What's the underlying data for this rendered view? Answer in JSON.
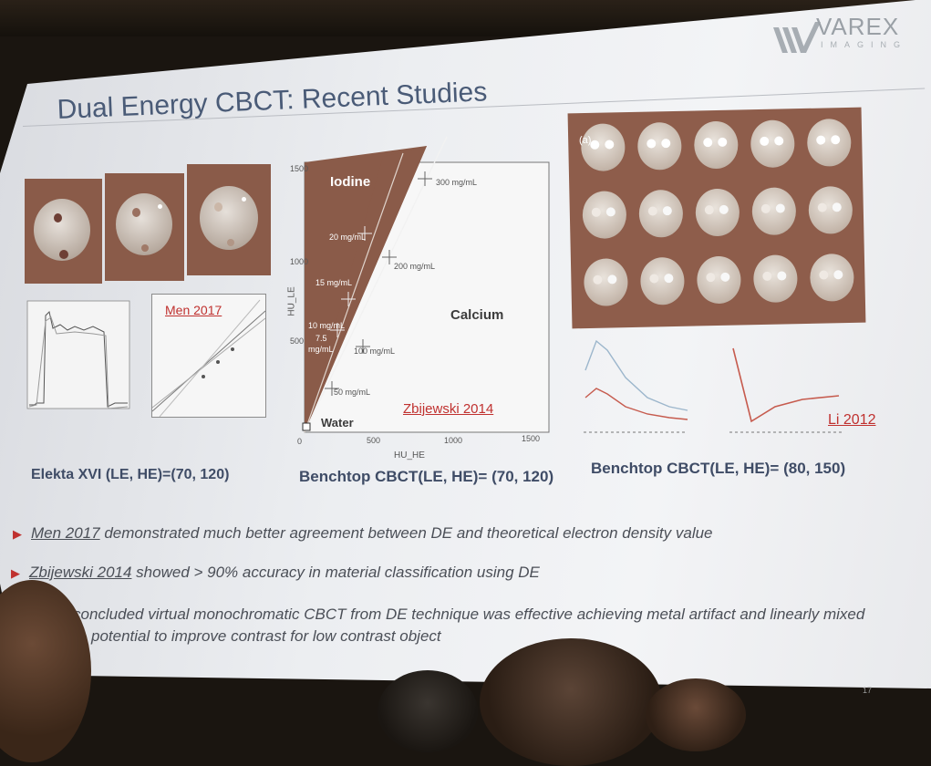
{
  "logo": {
    "name": "VAREX",
    "sub": "IMAGING"
  },
  "slide": {
    "title": "Dual Energy CBCT: Recent Studies",
    "page_number": "17"
  },
  "left_panel": {
    "plot_ref": "Men 2017",
    "caption": "Elekta XVI (LE, HE)=(70, 120)"
  },
  "middle_panel": {
    "labels": {
      "iodine": "Iodine",
      "calcium": "Calcium",
      "water": "Water",
      "c300": "300 mg/mL",
      "c200": "200 mg/mL",
      "c100": "100 mg/mL",
      "c50": "50 mg/mL",
      "i20": "20 mg/mL",
      "i15": "15 mg/mL",
      "i10": "10 mg/mL",
      "i75": "7.5",
      "i75b": "mg/mL"
    },
    "y_ticks": [
      "1500",
      "1000",
      "500"
    ],
    "x_ticks": [
      "0",
      "500",
      "1000",
      "1500"
    ],
    "ylabel": "HU_LE",
    "xlabel": "HU_HE",
    "ref": "Zbijewski 2014",
    "caption": "Benchtop CBCT(LE, HE)= (70, 120)"
  },
  "right_panel": {
    "grid_label": "(a)",
    "plot_ref": "Li 2012",
    "caption": "Benchtop CBCT(LE, HE)= (80, 150)"
  },
  "bullets": [
    {
      "ref": "Men 2017",
      "text": " demonstrated much better agreement between DE and theoretical electron density value"
    },
    {
      "ref": "Zbijewski 2014",
      "text": " showed > 90% accuracy in material classification using DE"
    },
    {
      "ref": "",
      "text": "concluded virtual monochromatic CBCT from DE technique was effective achieving metal artifact and linearly mixed"
    },
    {
      "ref": "",
      "text": "potential to improve contrast for low contrast object"
    }
  ],
  "colors": {
    "title": "#4a5b77",
    "accent_red": "#c0312f",
    "photo_bg": "#8a5b49"
  }
}
